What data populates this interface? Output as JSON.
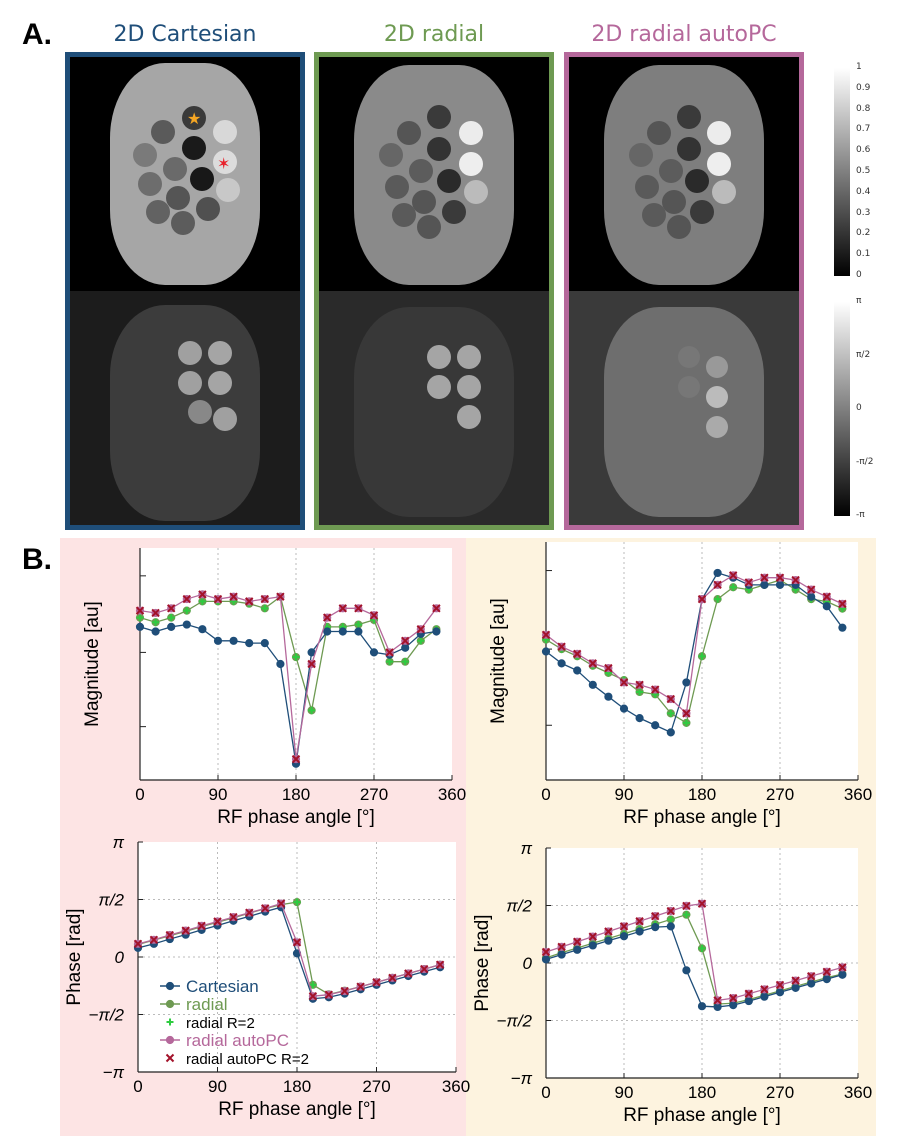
{
  "section_a": {
    "label": "A.",
    "panels": [
      {
        "title": "2D Cartesian",
        "color": "#1f4e79"
      },
      {
        "title": "2D radial",
        "color": "#6e9a52"
      },
      {
        "title": "2D radial autoPC",
        "color": "#b5689b"
      }
    ],
    "magnitude_colorbar": {
      "ticks": [
        "1",
        "0.9",
        "0.8",
        "0.7",
        "0.6",
        "0.5",
        "0.4",
        "0.3",
        "0.2",
        "0.1",
        "0"
      ]
    },
    "phase_colorbar": {
      "ticks": [
        "π",
        "π/2",
        "0",
        "-π/2",
        "-π"
      ]
    }
  },
  "section_b": {
    "label": "B."
  },
  "legend": {
    "items": [
      {
        "label": "Cartesian",
        "color": "#1f4e79",
        "marker": "dot",
        "bold": true
      },
      {
        "label": "radial",
        "color": "#6e9a52",
        "marker": "dot",
        "bold": true
      },
      {
        "label": "radial R=2",
        "color": "#2ecc40",
        "marker": "plus",
        "bold": false
      },
      {
        "label": "radial autoPC",
        "color": "#b5689b",
        "marker": "dot",
        "bold": true
      },
      {
        "label": "radial autoPC R=2",
        "color": "#a3122a",
        "marker": "x",
        "bold": false
      }
    ]
  },
  "chart_data": [
    {
      "id": "magnitude-left",
      "type": "line",
      "xlabel": "RF phase angle [°]",
      "ylabel": "Magnitude [au]",
      "xlim": [
        0,
        360
      ],
      "ylim": [
        0,
        1
      ],
      "xticks": [
        "0",
        "90",
        "180",
        "270",
        "360"
      ],
      "yticks": [],
      "x": [
        0,
        18,
        36,
        54,
        72,
        90,
        108,
        126,
        144,
        162,
        180,
        198,
        216,
        234,
        252,
        270,
        288,
        306,
        324,
        342
      ],
      "series": [
        {
          "name": "Cartesian",
          "values": [
            0.66,
            0.64,
            0.66,
            0.67,
            0.65,
            0.6,
            0.6,
            0.59,
            0.59,
            0.5,
            0.07,
            0.55,
            0.64,
            0.64,
            0.64,
            0.55,
            0.54,
            0.57,
            0.63,
            0.64
          ]
        },
        {
          "name": "radial",
          "values": [
            0.7,
            0.68,
            0.7,
            0.73,
            0.77,
            0.77,
            0.77,
            0.76,
            0.74,
            0.79,
            0.53,
            0.3,
            0.66,
            0.66,
            0.67,
            0.69,
            0.51,
            0.51,
            0.6,
            0.65
          ]
        },
        {
          "name": "radial R=2",
          "values": [
            0.7,
            0.68,
            0.7,
            0.73,
            0.77,
            0.77,
            0.77,
            0.76,
            0.74,
            0.79,
            0.53,
            0.3,
            0.66,
            0.66,
            0.67,
            0.69,
            0.51,
            0.51,
            0.6,
            0.65
          ]
        },
        {
          "name": "radial autoPC",
          "values": [
            0.73,
            0.72,
            0.74,
            0.78,
            0.8,
            0.78,
            0.79,
            0.77,
            0.78,
            0.79,
            0.09,
            0.5,
            0.7,
            0.74,
            0.74,
            0.71,
            0.55,
            0.6,
            0.65,
            0.74
          ]
        },
        {
          "name": "radial autoPC R=2",
          "values": [
            0.73,
            0.72,
            0.74,
            0.78,
            0.8,
            0.78,
            0.79,
            0.77,
            0.78,
            0.79,
            0.09,
            0.5,
            0.7,
            0.74,
            0.74,
            0.71,
            0.55,
            0.6,
            0.65,
            0.74
          ]
        }
      ]
    },
    {
      "id": "magnitude-right",
      "type": "line",
      "xlabel": "RF phase angle [°]",
      "ylabel": "Magnitude [au]",
      "xlim": [
        0,
        360
      ],
      "ylim": [
        0,
        1
      ],
      "xticks": [
        "0",
        "90",
        "180",
        "270",
        "360"
      ],
      "yticks": [],
      "x": [
        0,
        18,
        36,
        54,
        72,
        90,
        108,
        126,
        144,
        162,
        180,
        198,
        216,
        234,
        252,
        270,
        288,
        306,
        324,
        342
      ],
      "series": [
        {
          "name": "Cartesian",
          "values": [
            0.54,
            0.49,
            0.46,
            0.4,
            0.35,
            0.3,
            0.26,
            0.23,
            0.2,
            0.41,
            0.76,
            0.87,
            0.85,
            0.82,
            0.82,
            0.82,
            0.82,
            0.77,
            0.73,
            0.64
          ]
        },
        {
          "name": "radial",
          "values": [
            0.59,
            0.55,
            0.52,
            0.48,
            0.45,
            0.42,
            0.37,
            0.36,
            0.28,
            0.24,
            0.52,
            0.76,
            0.81,
            0.8,
            0.82,
            0.84,
            0.8,
            0.76,
            0.75,
            0.72
          ]
        },
        {
          "name": "radial R=2",
          "values": [
            0.59,
            0.55,
            0.52,
            0.48,
            0.45,
            0.42,
            0.37,
            0.36,
            0.28,
            0.24,
            0.52,
            0.76,
            0.81,
            0.8,
            0.82,
            0.84,
            0.8,
            0.76,
            0.75,
            0.72
          ]
        },
        {
          "name": "radial autoPC",
          "values": [
            0.61,
            0.56,
            0.53,
            0.49,
            0.47,
            0.41,
            0.4,
            0.38,
            0.34,
            0.28,
            0.76,
            0.82,
            0.86,
            0.83,
            0.85,
            0.85,
            0.84,
            0.8,
            0.77,
            0.74
          ]
        },
        {
          "name": "radial autoPC R=2",
          "values": [
            0.61,
            0.56,
            0.53,
            0.49,
            0.47,
            0.41,
            0.4,
            0.38,
            0.34,
            0.28,
            0.76,
            0.82,
            0.86,
            0.83,
            0.85,
            0.85,
            0.84,
            0.8,
            0.77,
            0.74
          ]
        }
      ]
    },
    {
      "id": "phase-left",
      "type": "line",
      "xlabel": "RF phase angle [°]",
      "ylabel": "Phase [rad]",
      "xlim": [
        0,
        360
      ],
      "ylim": [
        -3.14159,
        3.14159
      ],
      "xticks": [
        "0",
        "90",
        "180",
        "270",
        "360"
      ],
      "yticks": [
        "π",
        "π/2",
        "0",
        "−π/2",
        "−π"
      ],
      "x": [
        0,
        18,
        36,
        54,
        72,
        90,
        108,
        126,
        144,
        162,
        180,
        198,
        216,
        234,
        252,
        270,
        288,
        306,
        324,
        342
      ],
      "series": [
        {
          "name": "Cartesian",
          "values": [
            0.25,
            0.36,
            0.49,
            0.61,
            0.74,
            0.86,
            0.99,
            1.11,
            1.24,
            1.36,
            0.1,
            -1.14,
            -1.1,
            -1.0,
            -0.88,
            -0.76,
            -0.64,
            -0.52,
            -0.4,
            -0.28
          ]
        },
        {
          "name": "radial",
          "values": [
            0.34,
            0.46,
            0.58,
            0.7,
            0.83,
            0.95,
            1.07,
            1.2,
            1.32,
            1.43,
            1.5,
            -0.76,
            -1.02,
            -0.92,
            -0.81,
            -0.69,
            -0.57,
            -0.45,
            -0.33,
            -0.21
          ]
        },
        {
          "name": "radial R=2",
          "values": [
            0.34,
            0.46,
            0.58,
            0.7,
            0.83,
            0.95,
            1.07,
            1.2,
            1.32,
            1.43,
            1.5,
            -0.76,
            -1.02,
            -0.92,
            -0.81,
            -0.69,
            -0.57,
            -0.45,
            -0.33,
            -0.21
          ]
        },
        {
          "name": "radial autoPC",
          "values": [
            0.36,
            0.47,
            0.6,
            0.72,
            0.85,
            0.97,
            1.09,
            1.21,
            1.33,
            1.46,
            0.4,
            -1.07,
            -1.03,
            -0.93,
            -0.81,
            -0.69,
            -0.57,
            -0.45,
            -0.33,
            -0.21
          ]
        },
        {
          "name": "radial autoPC R=2",
          "values": [
            0.36,
            0.47,
            0.6,
            0.72,
            0.85,
            0.97,
            1.09,
            1.21,
            1.33,
            1.46,
            0.4,
            -1.07,
            -1.03,
            -0.93,
            -0.81,
            -0.69,
            -0.57,
            -0.45,
            -0.33,
            -0.21
          ]
        }
      ]
    },
    {
      "id": "phase-right",
      "type": "line",
      "xlabel": "RF phase angle [°]",
      "ylabel": "Phase [rad]",
      "xlim": [
        0,
        360
      ],
      "ylim": [
        -3.14159,
        3.14159
      ],
      "xticks": [
        "0",
        "90",
        "180",
        "270",
        "360"
      ],
      "yticks": [
        "π",
        "π/2",
        "0",
        "−π/2",
        "−π"
      ],
      "x": [
        0,
        18,
        36,
        54,
        72,
        90,
        108,
        126,
        144,
        162,
        180,
        198,
        216,
        234,
        252,
        270,
        288,
        306,
        324,
        342
      ],
      "series": [
        {
          "name": "Cartesian",
          "values": [
            0.1,
            0.23,
            0.36,
            0.48,
            0.61,
            0.73,
            0.86,
            0.98,
            1.0,
            -0.2,
            -1.18,
            -1.2,
            -1.15,
            -1.04,
            -0.92,
            -0.8,
            -0.68,
            -0.56,
            -0.44,
            -0.32
          ]
        },
        {
          "name": "radial",
          "values": [
            0.14,
            0.28,
            0.41,
            0.54,
            0.67,
            0.8,
            0.93,
            1.06,
            1.19,
            1.32,
            0.4,
            -1.12,
            -1.1,
            -1.0,
            -0.88,
            -0.76,
            -0.64,
            -0.52,
            -0.4,
            -0.3
          ]
        },
        {
          "name": "radial R=2",
          "values": [
            0.14,
            0.28,
            0.41,
            0.54,
            0.67,
            0.8,
            0.93,
            1.06,
            1.19,
            1.32,
            0.4,
            -1.12,
            -1.1,
            -1.0,
            -0.88,
            -0.76,
            -0.64,
            -0.52,
            -0.4,
            -0.3
          ]
        },
        {
          "name": "radial autoPC",
          "values": [
            0.3,
            0.44,
            0.58,
            0.72,
            0.86,
            1.0,
            1.14,
            1.28,
            1.42,
            1.56,
            1.62,
            -1.02,
            -0.96,
            -0.84,
            -0.72,
            -0.6,
            -0.48,
            -0.36,
            -0.24,
            -0.12
          ]
        },
        {
          "name": "radial autoPC R=2",
          "values": [
            0.3,
            0.44,
            0.58,
            0.72,
            0.86,
            1.0,
            1.14,
            1.28,
            1.42,
            1.56,
            1.62,
            -1.02,
            -0.96,
            -0.84,
            -0.72,
            -0.6,
            -0.48,
            -0.36,
            -0.24,
            -0.12
          ]
        }
      ]
    }
  ]
}
